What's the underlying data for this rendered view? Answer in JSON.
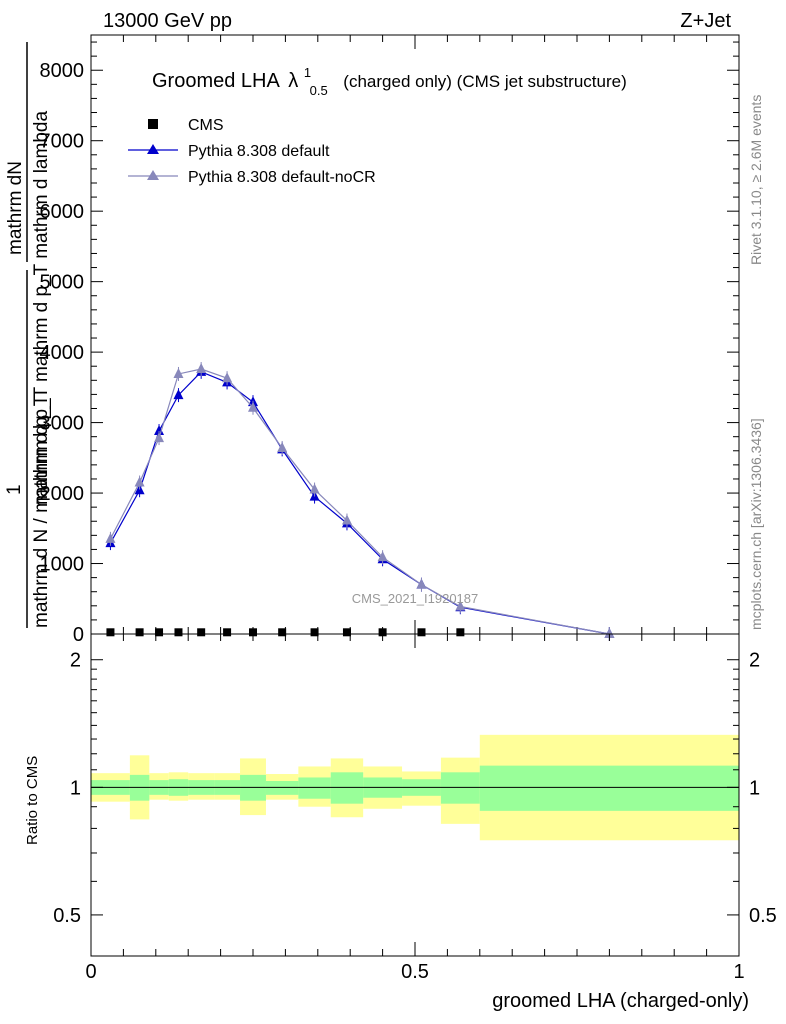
{
  "header": {
    "left": "13000 GeV pp",
    "right": "Z+Jet"
  },
  "side_labels": {
    "rivet": "Rivet 3.1.10, ≥ 2.6M events",
    "mcplots": "mcplots.cern.ch [arXiv:1306.3436]"
  },
  "watermark": "CMS_2021_I1920187",
  "chart_data": [
    {
      "type": "line",
      "title_main": "Groomed LHA",
      "title_lambda": "λ",
      "title_sup": "1",
      "title_sub": "0.5",
      "title_rest": "(charged only) (CMS jet substructure)",
      "ylabel_top_num": "mathrm dN",
      "ylabel_top_den": "mathrm d p_T mathrm d lambda",
      "ylabel_one": "1",
      "ylabel_bottom": "mathrm d N / mathrm d p_T",
      "ylabel_extra": "mathrm d p_T",
      "xlim": [
        0,
        1
      ],
      "ylim": [
        0,
        8500
      ],
      "yticks": [
        0,
        1000,
        2000,
        3000,
        4000,
        5000,
        6000,
        7000,
        8000
      ],
      "legend_position": "top-left",
      "series": [
        {
          "name": "CMS",
          "color": "#000000",
          "x": [
            0.03,
            0.075,
            0.105,
            0.135,
            0.17,
            0.21,
            0.25,
            0.295,
            0.345,
            0.395,
            0.45,
            0.51,
            0.57
          ],
          "y": [
            10,
            10,
            10,
            10,
            10,
            10,
            10,
            10,
            10,
            10,
            10,
            10,
            10
          ]
        },
        {
          "name": "Pythia 8.308 default",
          "color": "#0000cc",
          "x": [
            0.03,
            0.075,
            0.105,
            0.135,
            0.17,
            0.21,
            0.25,
            0.295,
            0.345,
            0.395,
            0.45,
            0.51,
            0.57,
            0.8
          ],
          "y": [
            1290,
            2040,
            2880,
            3390,
            3720,
            3570,
            3290,
            2620,
            1950,
            1570,
            1060,
            700,
            380,
            0
          ]
        },
        {
          "name": "Pythia 8.308 default-noCR",
          "color": "#8888bb",
          "x": [
            0.03,
            0.075,
            0.105,
            0.135,
            0.17,
            0.21,
            0.25,
            0.295,
            0.345,
            0.395,
            0.45,
            0.51,
            0.57,
            0.8
          ],
          "y": [
            1350,
            2150,
            2780,
            3690,
            3760,
            3630,
            3210,
            2640,
            2050,
            1610,
            1090,
            700,
            390,
            0
          ]
        }
      ]
    },
    {
      "type": "area",
      "ylabel": "Ratio to CMS",
      "xlabel": "groomed LHA (charged-only)",
      "xlim": [
        0,
        1
      ],
      "ylim": [
        0.4,
        2.3
      ],
      "log_y": true,
      "yticks": [
        0.5,
        1,
        2
      ],
      "ytick_labels": [
        "0.5",
        "1",
        "2"
      ],
      "xticks": [
        0,
        0.5,
        1
      ],
      "xtick_labels": [
        "0",
        "0.5",
        "1"
      ],
      "bins": [
        0,
        0.06,
        0.09,
        0.12,
        0.15,
        0.19,
        0.23,
        0.27,
        0.32,
        0.37,
        0.42,
        0.48,
        0.54,
        0.6,
        1.0
      ],
      "inner_band": {
        "color": "#99ff99",
        "lo": [
          0.96,
          0.93,
          0.96,
          0.955,
          0.96,
          0.96,
          0.93,
          0.96,
          0.94,
          0.915,
          0.945,
          0.955,
          0.915,
          0.88,
          0.88
        ],
        "hi": [
          1.04,
          1.07,
          1.04,
          1.045,
          1.04,
          1.04,
          1.07,
          1.035,
          1.055,
          1.085,
          1.055,
          1.045,
          1.085,
          1.125,
          1.125
        ]
      },
      "outer_band": {
        "color": "#ffff99",
        "lo": [
          0.925,
          0.84,
          0.935,
          0.93,
          0.935,
          0.935,
          0.86,
          0.935,
          0.9,
          0.85,
          0.89,
          0.905,
          0.82,
          0.75,
          0.75
        ],
        "hi": [
          1.08,
          1.19,
          1.08,
          1.085,
          1.08,
          1.08,
          1.17,
          1.075,
          1.12,
          1.17,
          1.12,
          1.09,
          1.175,
          1.33,
          1.33
        ]
      }
    }
  ]
}
